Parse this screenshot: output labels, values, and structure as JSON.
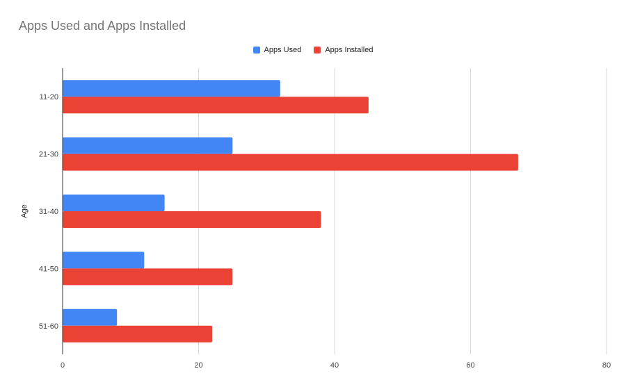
{
  "chart_data": {
    "type": "bar",
    "orientation": "horizontal",
    "title": "Apps Used and Apps Installed",
    "xlabel": "",
    "ylabel": "Age",
    "xlim": [
      0,
      80
    ],
    "xticks": [
      0,
      20,
      40,
      60,
      80
    ],
    "grid": true,
    "legend_position": "top",
    "categories": [
      "11-20",
      "21-30",
      "31-40",
      "41-50",
      "51-60"
    ],
    "series": [
      {
        "name": "Apps Used",
        "color": "#4285f4",
        "values": [
          32,
          25,
          15,
          12,
          8
        ]
      },
      {
        "name": "Apps Installed",
        "color": "#ea4335",
        "values": [
          45,
          67,
          38,
          25,
          22
        ]
      }
    ]
  }
}
